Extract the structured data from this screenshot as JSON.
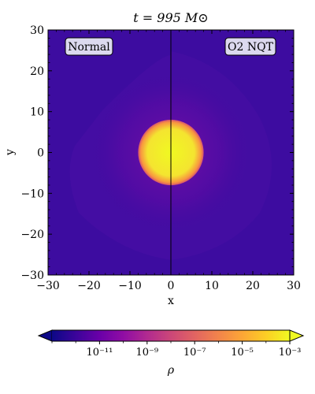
{
  "chart_data": {
    "type": "heatmap",
    "title": "t = 995 M⊙",
    "xlabel": "x",
    "ylabel": "y",
    "xlim": [
      -30,
      30
    ],
    "ylim": [
      -30,
      30
    ],
    "x_ticks": [
      -30,
      -20,
      -10,
      0,
      10,
      20,
      30
    ],
    "y_ticks": [
      -30,
      -20,
      -10,
      0,
      10,
      20,
      30
    ],
    "x_tick_labels": [
      "−30",
      "−20",
      "−10",
      "0",
      "10",
      "20",
      "30"
    ],
    "y_tick_labels": [
      "−30",
      "−20",
      "−10",
      "0",
      "10",
      "20",
      "30"
    ],
    "panels": [
      {
        "label": "Normal",
        "x_range": [
          -30,
          0
        ]
      },
      {
        "label": "O2 NQT",
        "x_range": [
          0,
          30
        ]
      }
    ],
    "divider_x": 0,
    "star": {
      "center": [
        0,
        0
      ],
      "radius": 8
    },
    "colorbar": {
      "label": "ρ",
      "scale": "log",
      "orientation": "horizontal",
      "range_log10": [
        -13,
        -3
      ],
      "extend": "both",
      "colormap": "plasma",
      "ticks_log10": [
        -11,
        -9,
        -7,
        -5,
        -3
      ],
      "tick_labels": [
        "10⁻¹¹",
        "10⁻⁹",
        "10⁻⁷",
        "10⁻⁵",
        "10⁻³"
      ]
    },
    "colors": {
      "background_field": "#3d0ca0",
      "star_core": "#f0f921",
      "star_edge": "#f89540",
      "plasma_stops": [
        "#0d0887",
        "#3b049a",
        "#6a00a8",
        "#900da4",
        "#b12a90",
        "#cc4778",
        "#e16462",
        "#f2844b",
        "#fca636",
        "#fcce25",
        "#f0f921"
      ]
    }
  }
}
